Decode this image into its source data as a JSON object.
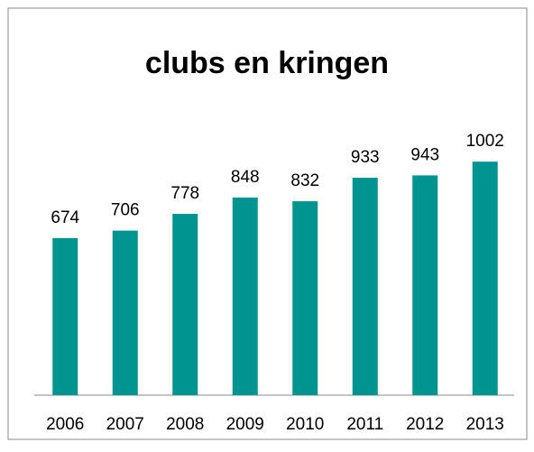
{
  "chart_data": {
    "type": "bar",
    "title": "clubs en kringen",
    "categories": [
      "2006",
      "2007",
      "2008",
      "2009",
      "2010",
      "2011",
      "2012",
      "2013"
    ],
    "values": [
      674,
      706,
      778,
      848,
      832,
      933,
      943,
      1002
    ],
    "color": "#009490",
    "ylim": [
      0,
      1200
    ]
  }
}
